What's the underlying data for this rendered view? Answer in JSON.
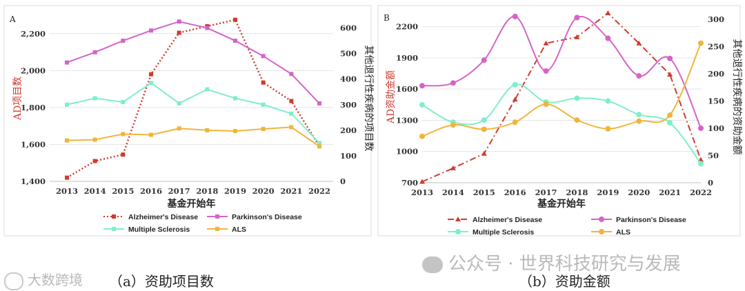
{
  "chart_data": [
    {
      "type": "line",
      "panel_label": "A",
      "caption": "（a）资助项目数",
      "xlabel": "基金开始年",
      "ylabel_left": "AD项目数",
      "ylabel_right": "其他退行性疾病的项目数",
      "categories": [
        "2013",
        "2014",
        "2015",
        "2016",
        "2017",
        "2018",
        "2019",
        "2020",
        "2021",
        "2022"
      ],
      "y_left": {
        "min": 1400,
        "max": 2300,
        "ticks": [
          "1,400",
          "1,600",
          "1,800",
          "2,000",
          "2,200"
        ],
        "tick_values": [
          1400,
          1600,
          1800,
          2000,
          2200
        ]
      },
      "y_right": {
        "min": 0,
        "max": 650,
        "ticks": [
          "0",
          "100",
          "200",
          "300",
          "400",
          "500",
          "600"
        ],
        "tick_values": [
          0,
          100,
          200,
          300,
          400,
          500,
          600
        ]
      },
      "series": [
        {
          "name": "Alzheimer's Disease",
          "axis": "left",
          "color": "#d03a2f",
          "style": "dotted",
          "marker": "square",
          "values": [
            1420,
            1510,
            1545,
            1980,
            2205,
            2240,
            2275,
            1935,
            1835,
            1590
          ]
        },
        {
          "name": "Parkinson's Disease",
          "axis": "right",
          "color": "#d563c8",
          "style": "solid",
          "marker": "square",
          "values": [
            465,
            505,
            550,
            590,
            625,
            600,
            550,
            490,
            420,
            305
          ]
        },
        {
          "name": "Multiple Sclerosis",
          "axis": "right",
          "color": "#7eeecb",
          "style": "solid",
          "marker": "square",
          "values": [
            300,
            325,
            310,
            385,
            305,
            360,
            325,
            300,
            265,
            150
          ]
        },
        {
          "name": "ALS",
          "axis": "right",
          "color": "#efb53a",
          "style": "solid",
          "marker": "square",
          "values": [
            160,
            163,
            185,
            182,
            207,
            200,
            197,
            205,
            212,
            137
          ]
        }
      ]
    },
    {
      "type": "line",
      "panel_label": "B",
      "caption": "（b）资助金额",
      "xlabel": "基金开始年",
      "ylabel_left": "AD资助金额",
      "ylabel_right": "其他退行性疾病的资助金额",
      "categories": [
        "2013",
        "2014",
        "2015",
        "2016",
        "2017",
        "2018",
        "2019",
        "2020",
        "2021",
        "2022"
      ],
      "y_left": {
        "min": 700,
        "max": 2350,
        "ticks": [
          "700",
          "1000",
          "1300",
          "1600",
          "1900",
          "2200"
        ],
        "tick_values": [
          700,
          1000,
          1300,
          1600,
          1900,
          2200
        ]
      },
      "y_right": {
        "min": 0,
        "max": 315,
        "ticks": [
          "0",
          "50",
          "100",
          "150",
          "200",
          "250",
          "300"
        ],
        "tick_values": [
          0,
          50,
          100,
          150,
          200,
          250,
          300
        ]
      },
      "series": [
        {
          "name": "Alzheimer's Disease",
          "axis": "left",
          "color": "#d03a2f",
          "style": "dashdot",
          "marker": "triangle",
          "values": [
            710,
            840,
            980,
            1500,
            2040,
            2100,
            2330,
            2040,
            1740,
            920
          ]
        },
        {
          "name": "Parkinson's Disease",
          "axis": "right",
          "color": "#d563c8",
          "style": "smooth",
          "marker": "circle",
          "values": [
            178,
            183,
            225,
            305,
            205,
            303,
            265,
            196,
            228,
            100
          ]
        },
        {
          "name": "Multiple Sclerosis",
          "axis": "right",
          "color": "#7eeecb",
          "style": "smooth",
          "marker": "circle",
          "values": [
            143,
            111,
            115,
            180,
            148,
            155,
            150,
            125,
            110,
            35
          ]
        },
        {
          "name": "ALS",
          "axis": "right",
          "color": "#efb53a",
          "style": "smooth",
          "marker": "circle",
          "values": [
            85,
            106,
            98,
            111,
            144,
            115,
            99,
            113,
            124,
            256
          ]
        }
      ]
    }
  ],
  "watermarks": {
    "left": "大数跨境",
    "right": "公众号 · 世界科技研究与发展"
  }
}
